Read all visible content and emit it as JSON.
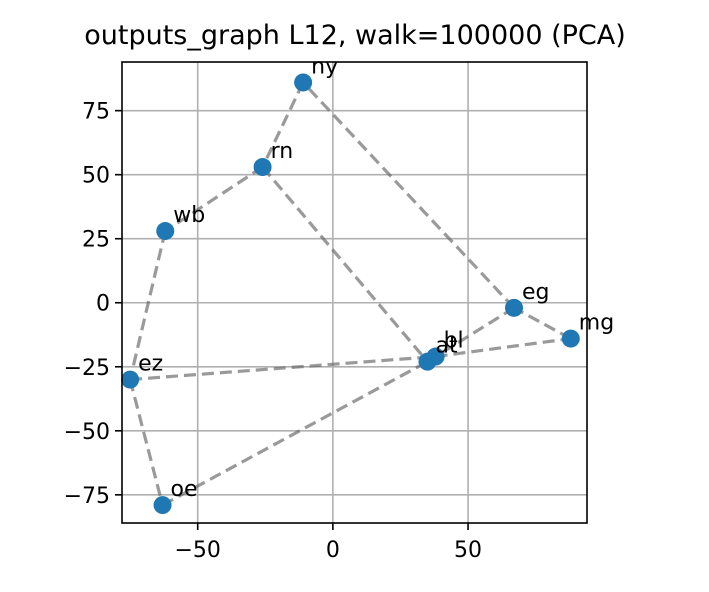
{
  "chart_data": {
    "type": "scatter",
    "title": "outputs_graph L12, walk=100000 (PCA)",
    "xlim": [
      -78,
      94
    ],
    "ylim": [
      -86,
      94
    ],
    "xticks": [
      -50,
      0,
      50
    ],
    "xtick_labels": [
      "−50",
      "0",
      "50"
    ],
    "yticks": [
      75,
      50,
      25,
      0,
      -25,
      -50,
      -75
    ],
    "ytick_labels": [
      "75",
      "50",
      "25",
      "0",
      "−25",
      "−50",
      "−75"
    ],
    "grid": true,
    "point_color": "#1f77b4",
    "points": [
      {
        "label": "ny",
        "x": -11,
        "y": 86
      },
      {
        "label": "rn",
        "x": -26,
        "y": 53
      },
      {
        "label": "wb",
        "x": -62,
        "y": 28
      },
      {
        "label": "eg",
        "x": 67,
        "y": -2
      },
      {
        "label": "mg",
        "x": 88,
        "y": -14
      },
      {
        "label": "bl",
        "x": 38,
        "y": -21
      },
      {
        "label": "at",
        "x": 35,
        "y": -23
      },
      {
        "label": "ez",
        "x": -75,
        "y": -30
      },
      {
        "label": "oe",
        "x": -63,
        "y": -79
      }
    ],
    "edges": [
      [
        "ny",
        "rn"
      ],
      [
        "rn",
        "wb"
      ],
      [
        "wb",
        "ez"
      ],
      [
        "ez",
        "oe"
      ],
      [
        "oe",
        "at"
      ],
      [
        "at",
        "eg"
      ],
      [
        "eg",
        "ny"
      ],
      [
        "rn",
        "at"
      ],
      [
        "ez",
        "bl"
      ],
      [
        "bl",
        "mg"
      ],
      [
        "mg",
        "eg"
      ]
    ]
  }
}
